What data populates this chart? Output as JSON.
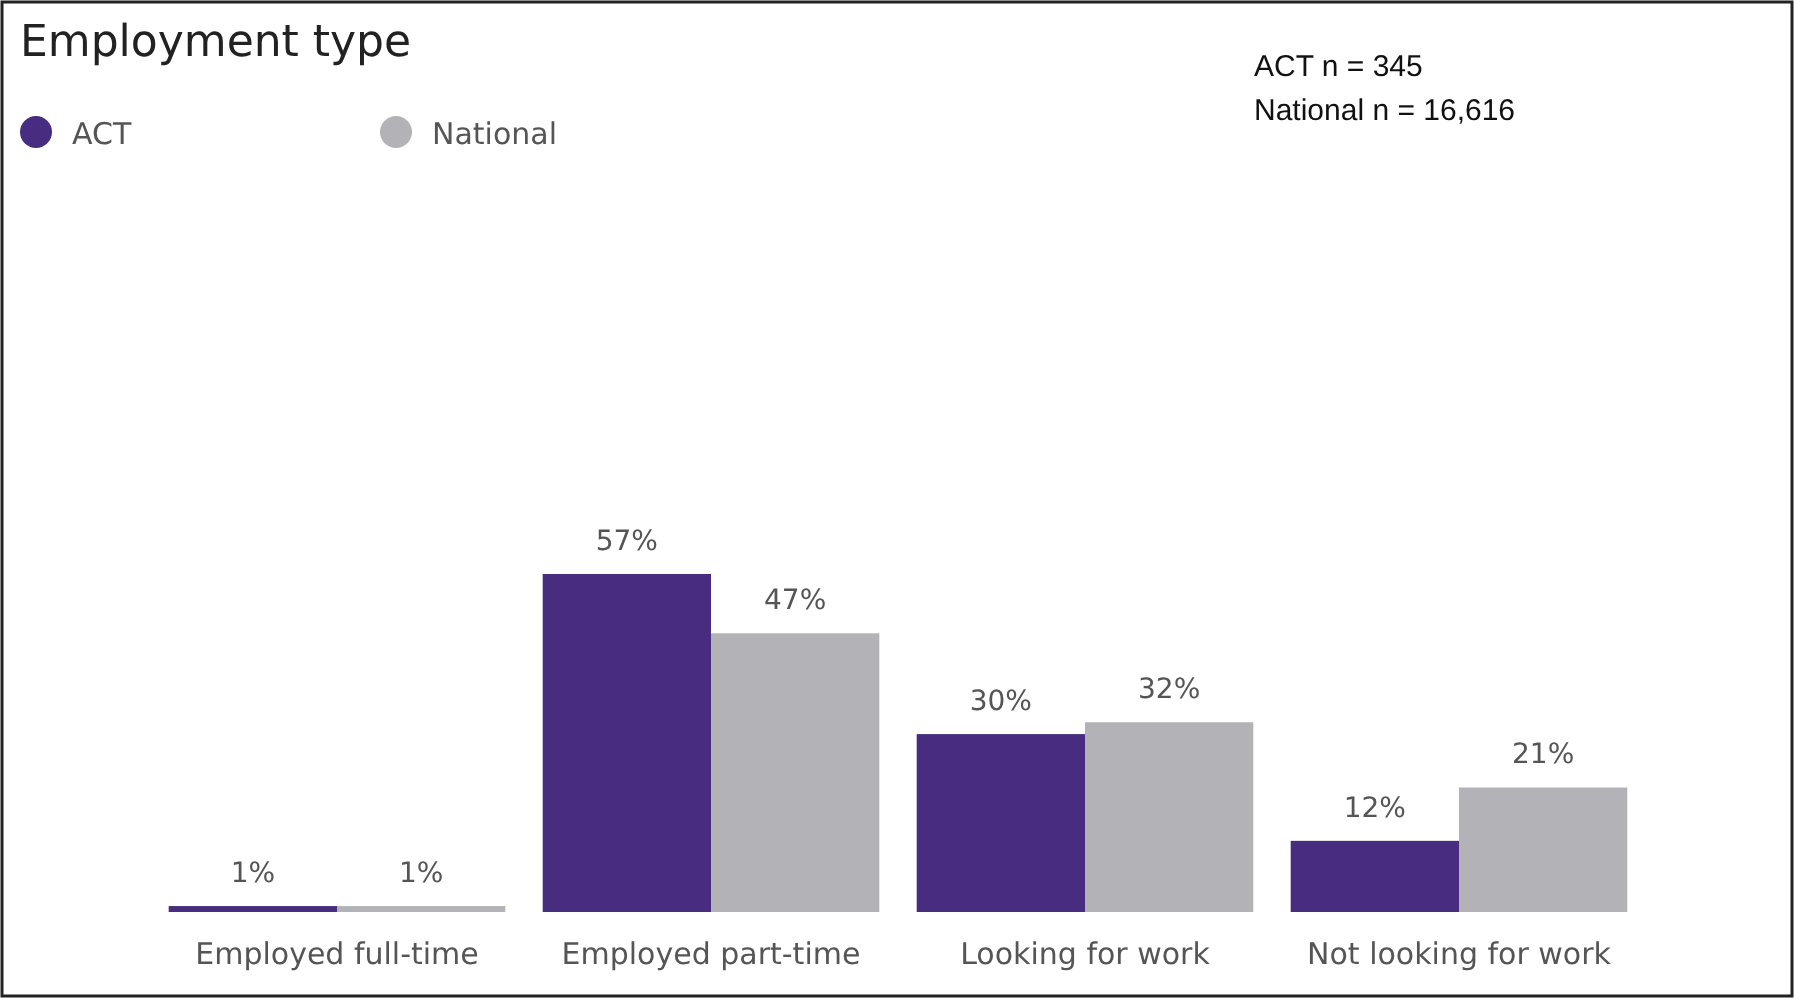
{
  "chart_data": {
    "type": "bar",
    "title": "Employment type",
    "categories": [
      "Employed full-time",
      "Employed part-time",
      "Looking for work",
      "Not looking for work"
    ],
    "series": [
      {
        "name": "ACT",
        "color": "#472c7f",
        "values": [
          1,
          57,
          30,
          12
        ],
        "value_labels": [
          "1%",
          "57%",
          "30%",
          "12%"
        ]
      },
      {
        "name": "National",
        "color": "#b3b3b7",
        "values": [
          1,
          47,
          32,
          21
        ],
        "value_labels": [
          "1%",
          "47%",
          "32%",
          "21%"
        ]
      }
    ],
    "legend": "top left",
    "annotations": [
      "ACT n = 345",
      "National n = 16,616"
    ]
  }
}
